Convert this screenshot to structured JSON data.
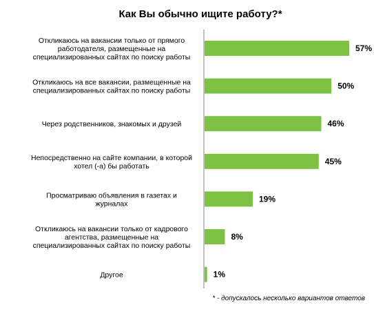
{
  "chart_data": {
    "type": "bar",
    "orientation": "horizontal",
    "title": "Как Вы обычно ищите работу?*",
    "categories": [
      [
        "Откликаюсь на вакансии только от прямого",
        "работодателя, размещенные на",
        "специализированных сайтах по поиску работы"
      ],
      [
        "Откликаюсь на все вакансии, размещенные на",
        "специализированных сайтах по поиску работы"
      ],
      [
        "Через родственников, знакомых и друзей"
      ],
      [
        "Непосредственно на сайте компании, в которой",
        "хотел (-а) бы работать"
      ],
      [
        "Просматриваю объявления в газетах и",
        "журналах"
      ],
      [
        "Откликаюсь на вакансии только от кадрового",
        "агентства, размещенные на",
        "специализированных сайтах по поиску работы"
      ],
      [
        "Другое"
      ]
    ],
    "values": [
      57,
      50,
      46,
      45,
      19,
      8,
      1
    ],
    "data_labels": [
      "57%",
      "50%",
      "46%",
      "45%",
      "19%",
      "8%",
      "1%"
    ],
    "unit": "%",
    "bar_color": "#7dc242",
    "axis_line_color": "#808080",
    "xlabel": "",
    "ylabel": "",
    "grid": false,
    "legend": "none"
  },
  "footnote": "* - допускалось несколько вариантов ответов"
}
